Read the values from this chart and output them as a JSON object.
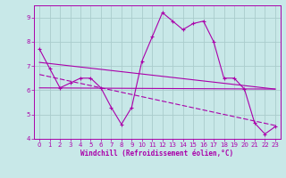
{
  "xlabel": "Windchill (Refroidissement éolien,°C)",
  "bg_color": "#c8e8e8",
  "line_color": "#aa00aa",
  "grid_color": "#aacccc",
  "xlim": [
    -0.5,
    23.5
  ],
  "ylim": [
    4,
    9.5
  ],
  "xticks": [
    0,
    1,
    2,
    3,
    4,
    5,
    6,
    7,
    8,
    9,
    10,
    11,
    12,
    13,
    14,
    15,
    16,
    17,
    18,
    19,
    20,
    21,
    22,
    23
  ],
  "yticks": [
    4,
    5,
    6,
    7,
    8,
    9
  ],
  "main_x": [
    0,
    1,
    2,
    3,
    4,
    5,
    6,
    7,
    8,
    9,
    10,
    11,
    12,
    13,
    14,
    15,
    16,
    17,
    18,
    19,
    20,
    21,
    22,
    23
  ],
  "main_y": [
    7.7,
    6.9,
    6.1,
    6.3,
    6.5,
    6.5,
    6.1,
    5.3,
    4.6,
    5.3,
    7.2,
    8.2,
    9.2,
    8.85,
    8.5,
    8.75,
    8.85,
    8.0,
    6.5,
    6.5,
    6.05,
    4.65,
    4.2,
    4.5
  ],
  "trend1_x": [
    0,
    23
  ],
  "trend1_y": [
    7.15,
    6.05
  ],
  "trend2_x": [
    0,
    23
  ],
  "trend2_y": [
    6.1,
    6.05
  ],
  "trend3_x": [
    0,
    23
  ],
  "trend3_y": [
    6.65,
    4.55
  ]
}
